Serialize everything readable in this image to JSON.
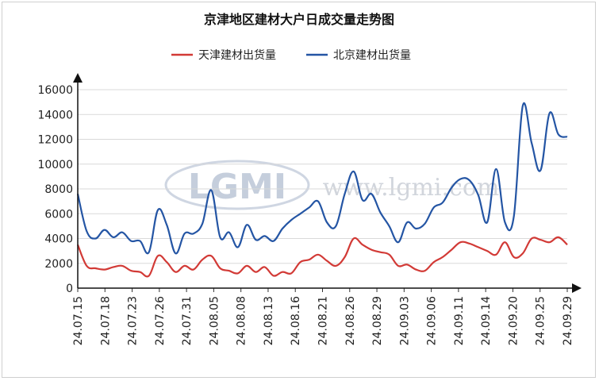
{
  "chart_data": {
    "type": "line",
    "title": "京津地区建材大户日成交量走势图",
    "xlabel": "",
    "ylabel": "",
    "ylim": [
      0,
      16000
    ],
    "yticks": [
      0,
      2000,
      4000,
      6000,
      8000,
      10000,
      12000,
      14000,
      16000
    ],
    "xtick_labels": [
      "24.07.15",
      "24.07.18",
      "24.07.23",
      "24.07.26",
      "24.07.31",
      "24.08.05",
      "24.08.08",
      "24.08.13",
      "24.08.16",
      "24.08.21",
      "24.08.26",
      "24.08.29",
      "24.09.03",
      "24.09.06",
      "24.09.11",
      "24.09.14",
      "24.09.20",
      "24.09.25",
      "24.09.29"
    ],
    "legend_position": "top-center",
    "grid": "horizontal",
    "watermark": {
      "logo": "LGMI",
      "url": "www.lgmi.com"
    },
    "series": [
      {
        "name": "天津建材出货量",
        "color": "#d23a36",
        "values": [
          3500,
          1800,
          1600,
          1500,
          1700,
          1800,
          1400,
          1300,
          1000,
          2600,
          2100,
          1300,
          1800,
          1500,
          2300,
          2600,
          1600,
          1400,
          1200,
          1800,
          1300,
          1700,
          1000,
          1300,
          1200,
          2100,
          2300,
          2700,
          2200,
          1800,
          2500,
          4000,
          3500,
          3100,
          2900,
          2700,
          1800,
          1900,
          1500,
          1400,
          2100,
          2500,
          3100,
          3700,
          3600,
          3300,
          3000,
          2700,
          3700,
          2500,
          2800,
          4000,
          3900,
          3700,
          4100,
          3500
        ]
      },
      {
        "name": "北京建材出货量",
        "color": "#2455a4",
        "values": [
          7600,
          4600,
          4000,
          4700,
          4100,
          4500,
          3800,
          3800,
          2900,
          6300,
          5100,
          2800,
          4400,
          4400,
          5200,
          7900,
          4100,
          4500,
          3300,
          5100,
          3900,
          4200,
          3800,
          4800,
          5500,
          6000,
          6500,
          7000,
          5300,
          5000,
          7600,
          9400,
          7100,
          7600,
          6100,
          5000,
          3700,
          5300,
          4800,
          5200,
          6500,
          6900,
          8100,
          8800,
          8700,
          7500,
          5300,
          9600,
          5300,
          5800,
          14700,
          11700,
          9500,
          14100,
          12400,
          null
        ]
      }
    ]
  }
}
